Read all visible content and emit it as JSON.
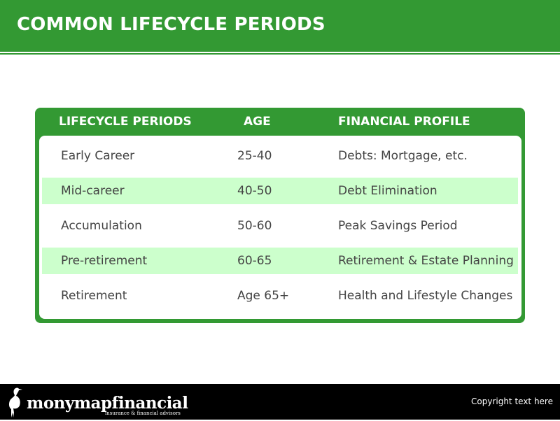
{
  "slide": {
    "title": "COMMON LIFECYCLE PERIODS"
  },
  "table": {
    "headers": {
      "period": "LIFECYCLE PERIODS",
      "age": "AGE",
      "profile": "FINANCIAL PROFILE"
    },
    "rows": [
      {
        "period": "Early Career",
        "age": "25-40",
        "profile": "Debts: Mortgage, etc."
      },
      {
        "period": "Mid-career",
        "age": "40-50",
        "profile": "Debt Elimination"
      },
      {
        "period": "Accumulation",
        "age": "50-60",
        "profile": "Peak Savings Period"
      },
      {
        "period": "Pre-retirement",
        "age": "60-65",
        "profile": "Retirement & Estate Planning"
      },
      {
        "period": "Retirement",
        "age": "Age 65+",
        "profile": "Health and Lifestyle Changes"
      }
    ]
  },
  "footer": {
    "logo_name": "monymapfinancial",
    "logo_tagline": "insurance & financial advisors",
    "logo_icon": "heron-icon",
    "copyright": "Copyright text here"
  },
  "colors": {
    "brand_green": "#339933",
    "row_shade": "#ccffcc",
    "footer_bg": "#000000"
  }
}
